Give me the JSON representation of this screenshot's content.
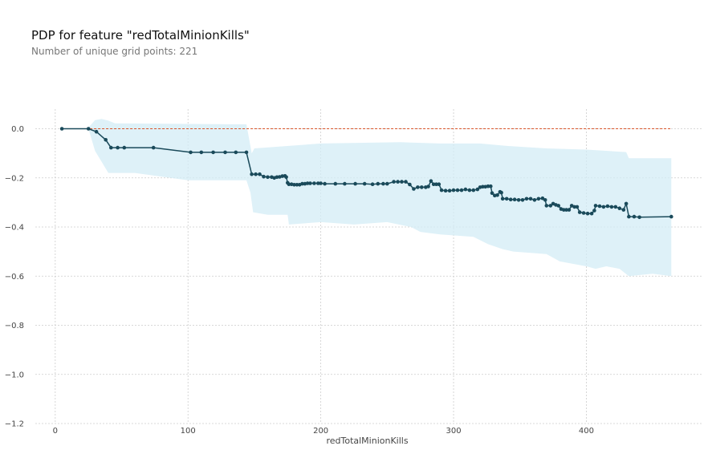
{
  "header": {
    "title": "PDP for feature \"redTotalMinionKills\"",
    "subtitle": "Number of unique grid points: 221"
  },
  "chart_data": {
    "type": "line",
    "title": "PDP for feature \"redTotalMinionKills\"",
    "subtitle": "Number of unique grid points: 221",
    "xlabel": "redTotalMinionKills",
    "ylabel": "",
    "xlim": [
      -15,
      488
    ],
    "ylim": [
      -1.2,
      0.08
    ],
    "xticks": [
      0,
      100,
      200,
      300,
      400
    ],
    "yticks": [
      0.0,
      -0.2,
      -0.4,
      -0.6,
      -0.8,
      -1.0,
      -1.2
    ],
    "xtick_labels": [
      "0",
      "100",
      "200",
      "300",
      "400"
    ],
    "ytick_labels": [
      "0.0",
      "−0.2",
      "−0.4",
      "−0.6",
      "−0.8",
      "−1.0",
      "−1.2"
    ],
    "grid": true,
    "colors": {
      "line": "#1a4a5a",
      "band": "#d3ecf5",
      "baseline": "#d9542a"
    },
    "baseline": {
      "y": 0,
      "x_start": 5,
      "x_end": 464
    },
    "series": [
      {
        "values": [
          [
            5,
            0
          ],
          [
            25,
            0
          ],
          [
            31,
            -0.012
          ],
          [
            38,
            -0.045
          ],
          [
            42,
            -0.077
          ],
          [
            47,
            -0.077
          ],
          [
            52,
            -0.077
          ],
          [
            74,
            -0.077
          ],
          [
            102,
            -0.096
          ],
          [
            110,
            -0.096
          ],
          [
            119,
            -0.096
          ],
          [
            128,
            -0.096
          ],
          [
            136,
            -0.096
          ],
          [
            144,
            -0.096
          ],
          [
            148,
            -0.185
          ],
          [
            151,
            -0.185
          ],
          [
            154,
            -0.185
          ],
          [
            157,
            -0.195
          ],
          [
            160,
            -0.197
          ],
          [
            163,
            -0.197
          ],
          [
            165,
            -0.2
          ],
          [
            167,
            -0.197
          ],
          [
            169,
            -0.196
          ],
          [
            171,
            -0.193
          ],
          [
            173,
            -0.192
          ],
          [
            174,
            -0.197
          ],
          [
            175,
            -0.22
          ],
          [
            176,
            -0.226
          ],
          [
            178,
            -0.226
          ],
          [
            180,
            -0.228
          ],
          [
            182,
            -0.228
          ],
          [
            184,
            -0.228
          ],
          [
            186,
            -0.224
          ],
          [
            188,
            -0.224
          ],
          [
            190,
            -0.222
          ],
          [
            192,
            -0.222
          ],
          [
            195,
            -0.222
          ],
          [
            198,
            -0.222
          ],
          [
            200,
            -0.222
          ],
          [
            203,
            -0.224
          ],
          [
            211,
            -0.224
          ],
          [
            218,
            -0.224
          ],
          [
            226,
            -0.224
          ],
          [
            233,
            -0.224
          ],
          [
            239,
            -0.226
          ],
          [
            243,
            -0.224
          ],
          [
            247,
            -0.224
          ],
          [
            250,
            -0.224
          ],
          [
            255,
            -0.216
          ],
          [
            258,
            -0.216
          ],
          [
            261,
            -0.216
          ],
          [
            264,
            -0.216
          ],
          [
            267,
            -0.227
          ],
          [
            270,
            -0.245
          ],
          [
            273,
            -0.238
          ],
          [
            276,
            -0.238
          ],
          [
            279,
            -0.238
          ],
          [
            281,
            -0.235
          ],
          [
            283,
            -0.213
          ],
          [
            285,
            -0.226
          ],
          [
            287,
            -0.226
          ],
          [
            289,
            -0.226
          ],
          [
            291,
            -0.25
          ],
          [
            294,
            -0.252
          ],
          [
            297,
            -0.252
          ],
          [
            300,
            -0.25
          ],
          [
            303,
            -0.25
          ],
          [
            306,
            -0.25
          ],
          [
            309,
            -0.247
          ],
          [
            312,
            -0.25
          ],
          [
            315,
            -0.25
          ],
          [
            318,
            -0.247
          ],
          [
            320,
            -0.238
          ],
          [
            322,
            -0.236
          ],
          [
            324,
            -0.236
          ],
          [
            326,
            -0.234
          ],
          [
            328,
            -0.234
          ],
          [
            329,
            -0.262
          ],
          [
            331,
            -0.272
          ],
          [
            333,
            -0.27
          ],
          [
            335,
            -0.257
          ],
          [
            336,
            -0.26
          ],
          [
            337,
            -0.285
          ],
          [
            340,
            -0.285
          ],
          [
            343,
            -0.288
          ],
          [
            346,
            -0.288
          ],
          [
            349,
            -0.29
          ],
          [
            352,
            -0.29
          ],
          [
            355,
            -0.285
          ],
          [
            358,
            -0.285
          ],
          [
            361,
            -0.29
          ],
          [
            364,
            -0.285
          ],
          [
            367,
            -0.283
          ],
          [
            369,
            -0.29
          ],
          [
            370,
            -0.313
          ],
          [
            373,
            -0.313
          ],
          [
            375,
            -0.305
          ],
          [
            377,
            -0.31
          ],
          [
            379,
            -0.313
          ],
          [
            381,
            -0.327
          ],
          [
            383,
            -0.33
          ],
          [
            385,
            -0.33
          ],
          [
            387,
            -0.33
          ],
          [
            389,
            -0.313
          ],
          [
            391,
            -0.318
          ],
          [
            393,
            -0.318
          ],
          [
            395,
            -0.34
          ],
          [
            398,
            -0.343
          ],
          [
            401,
            -0.345
          ],
          [
            404,
            -0.345
          ],
          [
            406,
            -0.333
          ],
          [
            407,
            -0.313
          ],
          [
            410,
            -0.315
          ],
          [
            413,
            -0.318
          ],
          [
            416,
            -0.315
          ],
          [
            419,
            -0.318
          ],
          [
            422,
            -0.318
          ],
          [
            425,
            -0.324
          ],
          [
            428,
            -0.33
          ],
          [
            430,
            -0.305
          ],
          [
            432,
            -0.358
          ],
          [
            436,
            -0.358
          ],
          [
            440,
            -0.36
          ],
          [
            464,
            -0.358
          ]
        ]
      }
    ],
    "band": {
      "upper": [
        [
          25,
          0.005
        ],
        [
          30,
          0.035
        ],
        [
          35,
          0.04
        ],
        [
          40,
          0.033
        ],
        [
          45,
          0.022
        ],
        [
          140,
          0.018
        ],
        [
          144,
          0.018
        ],
        [
          148,
          -0.1
        ],
        [
          150,
          -0.08
        ],
        [
          200,
          -0.06
        ],
        [
          260,
          -0.055
        ],
        [
          290,
          -0.06
        ],
        [
          320,
          -0.06
        ],
        [
          340,
          -0.07
        ],
        [
          370,
          -0.08
        ],
        [
          400,
          -0.085
        ],
        [
          430,
          -0.095
        ],
        [
          432,
          -0.12
        ],
        [
          464,
          -0.12
        ]
      ],
      "lower": [
        [
          464,
          -0.6
        ],
        [
          450,
          -0.59
        ],
        [
          432,
          -0.6
        ],
        [
          425,
          -0.57
        ],
        [
          415,
          -0.56
        ],
        [
          407,
          -0.57
        ],
        [
          400,
          -0.56
        ],
        [
          380,
          -0.54
        ],
        [
          370,
          -0.51
        ],
        [
          345,
          -0.5
        ],
        [
          337,
          -0.49
        ],
        [
          326,
          -0.47
        ],
        [
          315,
          -0.44
        ],
        [
          290,
          -0.43
        ],
        [
          275,
          -0.42
        ],
        [
          268,
          -0.4
        ],
        [
          250,
          -0.38
        ],
        [
          225,
          -0.39
        ],
        [
          200,
          -0.38
        ],
        [
          176,
          -0.39
        ],
        [
          175,
          -0.35
        ],
        [
          160,
          -0.35
        ],
        [
          149,
          -0.34
        ],
        [
          147,
          -0.26
        ],
        [
          144,
          -0.21
        ],
        [
          100,
          -0.21
        ],
        [
          60,
          -0.18
        ],
        [
          40,
          -0.18
        ],
        [
          30,
          -0.09
        ],
        [
          25,
          0.0
        ]
      ]
    }
  }
}
